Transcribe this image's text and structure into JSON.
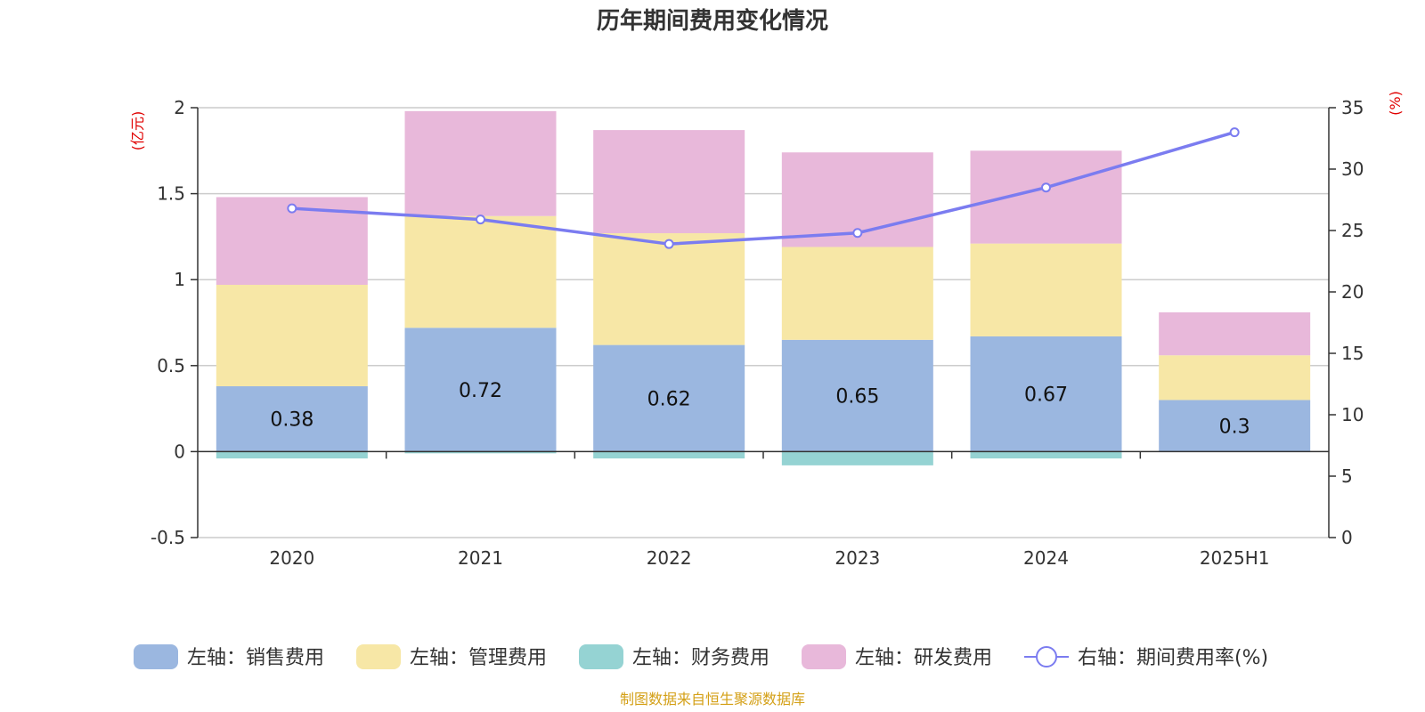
{
  "chart_data": {
    "type": "bar",
    "title": "历年期间费用变化情况",
    "categories": [
      "2020",
      "2021",
      "2022",
      "2023",
      "2024",
      "2025H1"
    ],
    "left_axis": {
      "unit": "(亿元)",
      "ylim": [
        -0.5,
        2
      ],
      "ticks": [
        "-0.5",
        "0",
        "0.5",
        "1",
        "1.5",
        "2"
      ]
    },
    "right_axis": {
      "unit": "(%)",
      "ylim": [
        0,
        35
      ],
      "ticks": [
        "0",
        "5",
        "10",
        "15",
        "20",
        "25",
        "30",
        "35"
      ]
    },
    "series": [
      {
        "name": "左轴：销售费用",
        "axis": "left",
        "kind": "bar",
        "color": "#9bb7e0",
        "values": [
          0.38,
          0.72,
          0.62,
          0.65,
          0.67,
          0.3
        ],
        "labels": [
          "0.38",
          "0.72",
          "0.62",
          "0.65",
          "0.67",
          "0.3"
        ]
      },
      {
        "name": "左轴：管理费用",
        "axis": "left",
        "kind": "bar",
        "color": "#f7e7a6",
        "values": [
          0.59,
          0.65,
          0.65,
          0.54,
          0.54,
          0.26
        ]
      },
      {
        "name": "左轴：财务费用",
        "axis": "left",
        "kind": "bar",
        "color": "#95d3d3",
        "values": [
          -0.04,
          -0.01,
          -0.04,
          -0.08,
          -0.04,
          0.0
        ]
      },
      {
        "name": "左轴：研发费用",
        "axis": "left",
        "kind": "bar",
        "color": "#e8b8da",
        "values": [
          0.51,
          0.61,
          0.6,
          0.55,
          0.54,
          0.25
        ]
      },
      {
        "name": "右轴：期间费用率(%)",
        "axis": "right",
        "kind": "line",
        "color": "#7b7cf0",
        "values": [
          26.8,
          25.9,
          23.9,
          24.8,
          28.5,
          33.0
        ]
      }
    ],
    "grid": true,
    "legend": "bottom-center",
    "source": "制图数据来自恒生聚源数据库"
  }
}
